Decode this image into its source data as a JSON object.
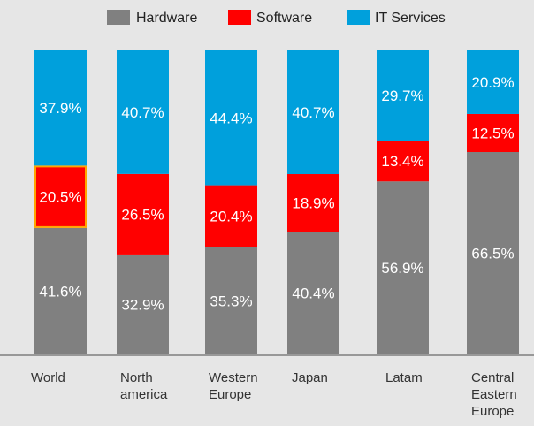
{
  "chart_data": {
    "type": "bar",
    "stacked": true,
    "normalized_percent": true,
    "categories": [
      "World",
      "North america",
      "Western Europe",
      "Japan",
      "Latam",
      "Central Eastern Europe"
    ],
    "category_lines": [
      [
        "World"
      ],
      [
        "North",
        "america"
      ],
      [
        "Western",
        "Europe"
      ],
      [
        "Japan"
      ],
      [
        "Latam"
      ],
      [
        "Central",
        "Eastern",
        "Europe"
      ]
    ],
    "series": [
      {
        "name": "Hardware",
        "color": "#808080",
        "values": [
          41.6,
          32.9,
          35.3,
          40.4,
          56.9,
          66.5
        ],
        "labels": [
          "41.6%",
          "32.9%",
          "35.3%",
          "40.4%",
          "56.9%",
          "66.5%"
        ]
      },
      {
        "name": "Software",
        "color": "#ff0000",
        "values": [
          20.5,
          26.5,
          20.4,
          18.9,
          13.4,
          12.5
        ],
        "labels": [
          "20.5%",
          "26.5%",
          "20.4%",
          "18.9%",
          "13.4%",
          "12.5%"
        ]
      },
      {
        "name": "IT Services",
        "color": "#00a0dc",
        "values": [
          37.9,
          40.7,
          44.4,
          40.7,
          29.7,
          20.9
        ],
        "labels": [
          "37.9%",
          "40.7%",
          "44.4%",
          "40.7%",
          "29.7%",
          "20.9%"
        ]
      }
    ],
    "highlight": {
      "category": "World",
      "series": "Software",
      "color": "#ffa500"
    },
    "ylim": [
      0,
      100
    ],
    "grid": false,
    "legend_position": "top-center",
    "title": "",
    "xlabel": "",
    "ylabel": ""
  }
}
